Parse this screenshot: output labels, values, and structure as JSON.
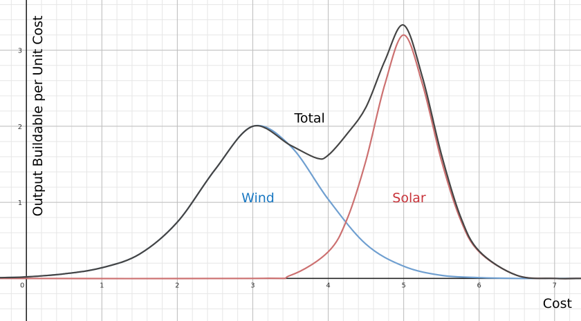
{
  "chart_data": {
    "type": "line",
    "xlabel": "Cost",
    "ylabel": "Output Buildable per Unit Cost",
    "xlim": [
      -0.35,
      7.35
    ],
    "ylim": [
      -0.56,
      3.66
    ],
    "x_ticks": [
      0,
      1,
      2,
      3,
      4,
      5,
      6,
      7
    ],
    "y_ticks": [
      1,
      2,
      3
    ],
    "grid": true,
    "legend": "none",
    "series": [
      {
        "name": "Wind",
        "color": "#6f9fd0",
        "x": [
          -0.35,
          0,
          0.5,
          1,
          1.5,
          2,
          2.5,
          3,
          3.5,
          4,
          4.5,
          5,
          5.5,
          6,
          6.5,
          7,
          7.35
        ],
        "y": [
          0.01,
          0.02,
          0.06,
          0.14,
          0.32,
          0.74,
          1.43,
          2.0,
          1.74,
          1.04,
          0.45,
          0.16,
          0.04,
          0.01,
          0.0,
          0.0,
          0.0
        ]
      },
      {
        "name": "Solar",
        "color": "#cc7070",
        "x": [
          -0.35,
          3.0,
          3.5,
          4.0,
          4.25,
          4.5,
          4.75,
          5.0,
          5.25,
          5.5,
          5.75,
          6.0,
          6.5,
          7.0,
          7.35
        ],
        "y": [
          0.0,
          0.0,
          0.04,
          0.35,
          0.78,
          1.55,
          2.55,
          3.2,
          2.55,
          1.55,
          0.78,
          0.35,
          0.04,
          0.0,
          0.0
        ]
      },
      {
        "name": "Total",
        "color": "#444444",
        "x": [
          -0.35,
          0,
          0.5,
          1,
          1.5,
          2,
          2.5,
          3,
          3.5,
          3.85,
          4.0,
          4.25,
          4.5,
          4.75,
          5.0,
          5.25,
          5.5,
          5.75,
          6.0,
          6.5,
          7.0,
          7.35
        ],
        "y": [
          0.01,
          0.02,
          0.06,
          0.14,
          0.32,
          0.74,
          1.43,
          2.0,
          1.75,
          1.58,
          1.62,
          1.9,
          2.25,
          2.86,
          3.33,
          2.64,
          1.63,
          0.82,
          0.36,
          0.04,
          0.0,
          0.0
        ]
      }
    ],
    "annotations": [
      {
        "text": "Wind",
        "x": 2.85,
        "y": 1.0,
        "color": "#1a78c2"
      },
      {
        "text": "Solar",
        "x": 4.85,
        "y": 1.0,
        "color": "#c8333a"
      },
      {
        "text": "Total",
        "x": 3.55,
        "y": 2.05,
        "color": "#000000"
      }
    ]
  }
}
